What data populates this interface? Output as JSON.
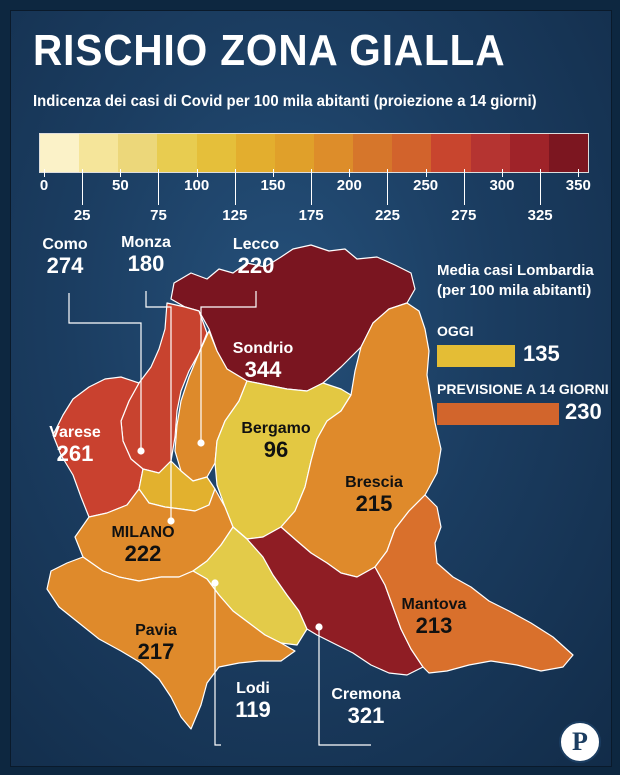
{
  "title": "RISCHIO ZONA GIALLA",
  "subtitle": "Indicenza dei casi di Covid per 100 mila abitanti (proiezione a 14 giorni)",
  "scale": {
    "colors": [
      "#fbf2c8",
      "#f5e59a",
      "#ecd77a",
      "#e8cc50",
      "#e5bf3a",
      "#e3ae2e",
      "#e0a02a",
      "#dd8d2a",
      "#d6762b",
      "#d2632c",
      "#c8452e",
      "#b53431",
      "#9f2329",
      "#7c1620"
    ],
    "top_labels": [
      "0",
      "50",
      "100",
      "150",
      "200",
      "250",
      "300",
      "350"
    ],
    "bottom_labels": [
      "25",
      "75",
      "125",
      "175",
      "225",
      "275",
      "325"
    ]
  },
  "provinces": [
    {
      "id": "como",
      "name": "Como",
      "value": "274",
      "color": "#c8432f"
    },
    {
      "id": "monza",
      "name": "Monza",
      "value": "180",
      "color": "#e2b12e"
    },
    {
      "id": "lecco",
      "name": "Lecco",
      "value": "220",
      "color": "#dd8a2b"
    },
    {
      "id": "sondrio",
      "name": "Sondrio",
      "value": "344",
      "color": "#7a1520"
    },
    {
      "id": "varese",
      "name": "Varese",
      "value": "261",
      "color": "#c9412f"
    },
    {
      "id": "bergamo",
      "name": "Bergamo",
      "value": "96",
      "color": "#e3c842"
    },
    {
      "id": "brescia",
      "name": "Brescia",
      "value": "215",
      "color": "#df8a2b"
    },
    {
      "id": "milano",
      "name": "MILANO",
      "value": "222",
      "color": "#df8a2b"
    },
    {
      "id": "pavia",
      "name": "Pavia",
      "value": "217",
      "color": "#df8a2b"
    },
    {
      "id": "lodi",
      "name": "Lodi",
      "value": "119",
      "color": "#e3cb49"
    },
    {
      "id": "cremona",
      "name": "Cremona",
      "value": "321",
      "color": "#8f1d24"
    },
    {
      "id": "mantova",
      "name": "Mantova",
      "value": "213",
      "color": "#d9702c"
    }
  ],
  "legend": {
    "title_line1": "Media casi Lombardia",
    "title_line2": "(per 100 mila abitanti)",
    "today_label": "OGGI",
    "today_value": "135",
    "today_color": "#e4bd35",
    "forecast_label": "PREVISIONE A 14 GIORNI",
    "forecast_value": "230",
    "forecast_color": "#d2652c"
  },
  "logo": "P"
}
